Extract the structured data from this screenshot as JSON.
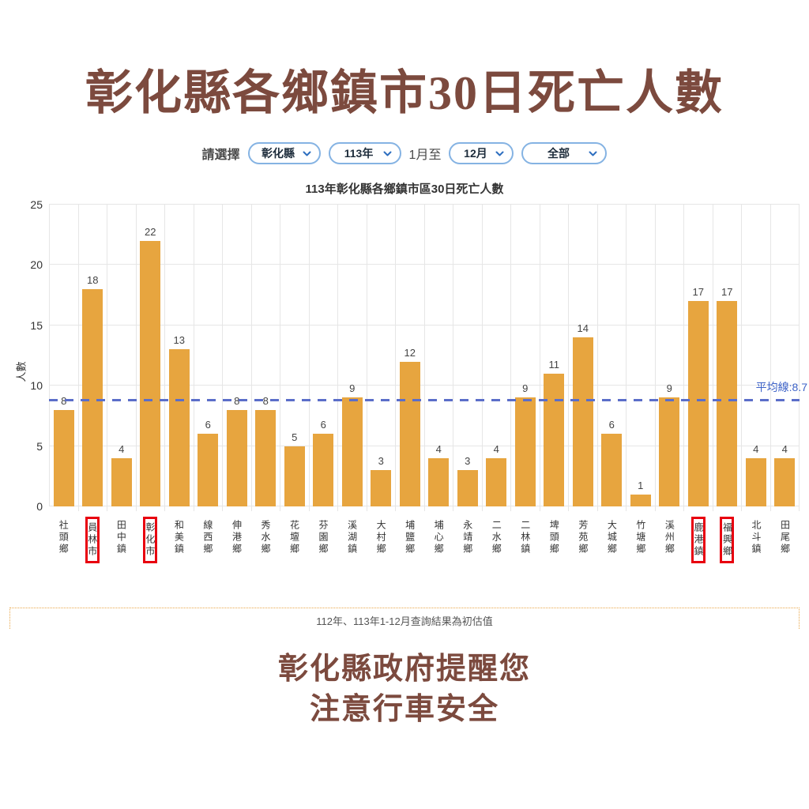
{
  "page": {
    "title": "彰化縣各鄉鎮市30日死亡人數"
  },
  "filters": {
    "label": "請選擇",
    "county": "彰化縣",
    "year": "113年",
    "month_join": "1月至",
    "month_end": "12月",
    "category": "全部"
  },
  "chart_data": {
    "type": "bar",
    "title": "113年彰化縣各鄉鎮市區30日死亡人數",
    "ylabel": "人數",
    "ylim": [
      0,
      25
    ],
    "yticks": [
      0,
      5,
      10,
      15,
      20,
      25
    ],
    "grid": true,
    "categories": [
      "社頭鄉",
      "員林市",
      "田中鎮",
      "彰化市",
      "和美鎮",
      "線西鄉",
      "伸港鄉",
      "秀水鄉",
      "花壇鄉",
      "芬園鄉",
      "溪湖鎮",
      "大村鄉",
      "埔鹽鄉",
      "埔心鄉",
      "永靖鄉",
      "二水鄉",
      "二林鎮",
      "埤頭鄉",
      "芳苑鄉",
      "大城鄉",
      "竹塘鄉",
      "溪州鄉",
      "鹿港鎮",
      "福興鄉",
      "北斗鎮",
      "田尾鄉"
    ],
    "values": [
      8,
      18,
      4,
      22,
      13,
      6,
      8,
      8,
      5,
      6,
      9,
      3,
      12,
      4,
      3,
      4,
      9,
      11,
      14,
      6,
      1,
      9,
      17,
      17,
      4,
      4
    ],
    "highlighted_categories": [
      "員林市",
      "彰化市",
      "鹿港鎮",
      "福興鄉"
    ],
    "average_line": {
      "value": 8.7,
      "label": "平均線:8.7"
    },
    "colors": {
      "bar": "#e7a53f",
      "average_line": "#5b6ec9",
      "average_label": "#3e63c8",
      "highlight_box": "#e8000f"
    }
  },
  "note": {
    "text": "112年、113年1-12月查詢結果為初估值"
  },
  "footer": {
    "line1": "彰化縣政府提醒您",
    "line2": "注意行車安全"
  }
}
